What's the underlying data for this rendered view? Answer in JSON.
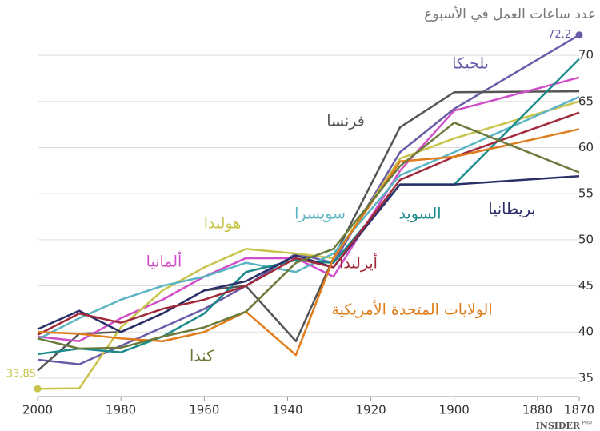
{
  "chart_data": {
    "type": "line",
    "title": "عدد ساعات العمل في الأسبوع",
    "credit": "INSIDER",
    "credit_sup": "PRO",
    "x": [
      1870,
      1900,
      1913,
      1929,
      1938,
      1950,
      1960,
      1970,
      1980,
      1990,
      2000
    ],
    "xlim": [
      2000,
      1870
    ],
    "xticks": [
      2000,
      1980,
      1960,
      1940,
      1920,
      1900,
      1880,
      1870
    ],
    "ylim": [
      33,
      73
    ],
    "yticks": [
      35,
      40,
      45,
      50,
      55,
      60,
      65,
      70
    ],
    "grid": true,
    "series": [
      {
        "name": "بلجيكا",
        "color": "#6a5ba8",
        "values": [
          72.2,
          64.2,
          59.5,
          47.5,
          48.5,
          45,
          42.5,
          40.5,
          38.5,
          36.5,
          37
        ],
        "value_labels": [
          "72,2",
          null,
          null,
          null,
          null,
          null,
          null,
          null,
          null,
          null,
          null
        ]
      },
      {
        "name": "فرنسا",
        "color": "#555555",
        "values": [
          66.1,
          66,
          62.2,
          48,
          39,
          45,
          44.5,
          42,
          40,
          39.8,
          35.8
        ]
      },
      {
        "name": "ألمانيا",
        "color": "#d04fc8",
        "values": [
          67.6,
          64,
          57.5,
          46,
          48,
          48,
          46,
          43.5,
          41.5,
          39,
          39.5
        ]
      },
      {
        "name": "هولندا",
        "color": "#c8c44a",
        "values": [
          65,
          61,
          58.8,
          48,
          48.5,
          49,
          47,
          44.5,
          40.5,
          33.9,
          33.85
        ],
        "value_labels": [
          null,
          null,
          null,
          null,
          null,
          null,
          null,
          null,
          null,
          null,
          "33,85"
        ]
      },
      {
        "name": "سويسرا",
        "color": "#5ab4c4",
        "values": [
          65.5,
          59.5,
          57,
          48.5,
          46.5,
          47.5,
          46,
          45,
          43.5,
          41.5,
          39.2
        ]
      },
      {
        "name": "السويد",
        "color": "#1a8a8a",
        "values": [
          69.6,
          56,
          56,
          47.5,
          47.8,
          46.5,
          42,
          39.5,
          37.8,
          38.2,
          37.6
        ]
      },
      {
        "name": "بريطانيا",
        "color": "#2a2f6a",
        "values": [
          56.9,
          56,
          56,
          47,
          48.3,
          45.5,
          44.5,
          42,
          40,
          42.3,
          40.3
        ]
      },
      {
        "name": "أيرلندا",
        "color": "#a02a3a",
        "values": [
          63.8,
          59,
          56.5,
          47,
          48,
          45,
          43.5,
          42.5,
          41,
          42,
          39.7
        ]
      },
      {
        "name": "الولايات المتحدة الأمريكية",
        "color": "#e07c1a",
        "values": [
          62,
          59,
          58.5,
          48,
          37.5,
          42.2,
          40,
          39,
          39.3,
          39.8,
          40
        ]
      },
      {
        "name": "كندا",
        "color": "#6a7a3a",
        "values": [
          57.3,
          62.7,
          58,
          49,
          47.5,
          42.2,
          40.5,
          39.5,
          38.3,
          38.2,
          39.3
        ]
      }
    ]
  }
}
